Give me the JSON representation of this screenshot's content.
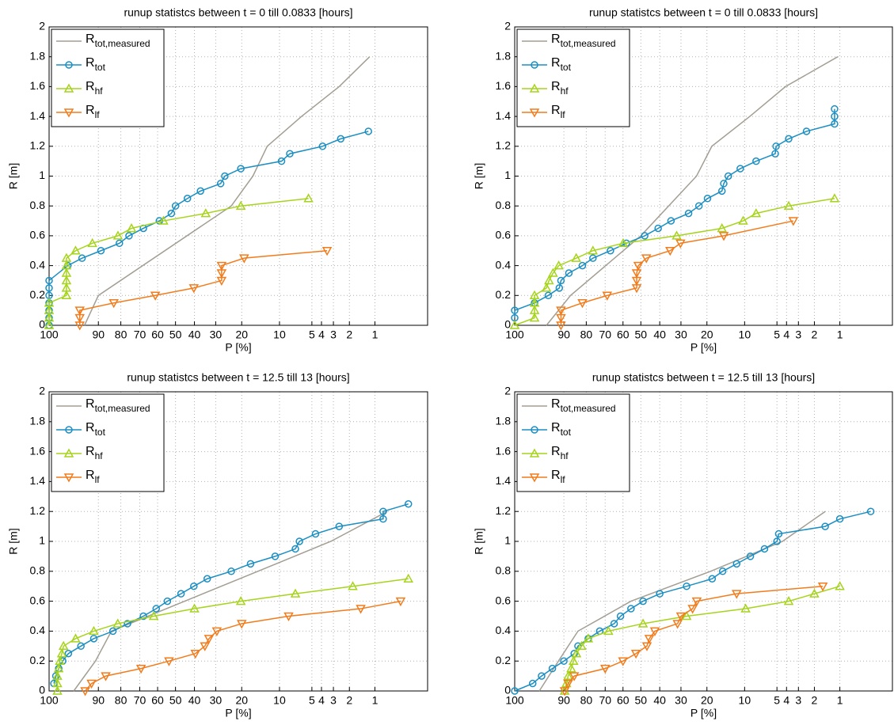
{
  "chart_data": [
    {
      "type": "line",
      "title": "runup statistcs between t = 0 till 0.0833 [hours]",
      "xlabel": "P [%]",
      "ylabel": "R [m]",
      "xscale": "rayleigh",
      "xlim": [
        100,
        0.2
      ],
      "ylim": [
        0,
        2
      ],
      "xticks": [
        100,
        90,
        80,
        70,
        60,
        50,
        40,
        30,
        20,
        10,
        5,
        4,
        3,
        2,
        1
      ],
      "yticks": [
        0,
        0.2,
        0.4,
        0.6,
        0.8,
        1,
        1.2,
        1.4,
        1.6,
        1.8,
        2
      ],
      "grid": true,
      "legend": "upper left",
      "series": [
        {
          "name": "R",
          "subscript": "tot,measured",
          "color": "#a39e93",
          "x": [
            94.7,
            90,
            23.7,
            16.5,
            12.7,
            6.3,
            2.6,
            1.16
          ],
          "values": [
            0,
            0.2,
            0.8,
            1.0,
            1.2,
            1.4,
            1.6,
            1.8
          ]
        },
        {
          "name": "R",
          "subscript": "tot",
          "color": "#1b8ec2",
          "marker": "circle",
          "x": [
            100,
            100,
            100,
            100,
            100,
            100,
            100,
            98.5,
            95.4,
            89,
            80.7,
            75.8,
            68,
            59,
            52.3,
            50,
            43.6,
            37,
            27.9,
            26.2,
            20.3,
            9.6,
            8.1,
            3.9,
            2.5,
            1.2
          ],
          "values": [
            0,
            0.05,
            0.1,
            0.15,
            0.2,
            0.25,
            0.3,
            0.4,
            0.45,
            0.5,
            0.55,
            0.6,
            0.65,
            0.7,
            0.75,
            0.8,
            0.85,
            0.9,
            0.95,
            1.0,
            1.05,
            1.1,
            1.15,
            1.2,
            1.25,
            1.3
          ]
        },
        {
          "name": "R",
          "subscript": "hf",
          "color": "#a6d41c",
          "marker": "triangle-up",
          "x": [
            100,
            100,
            100,
            100,
            98.7,
            98.7,
            98.7,
            98.7,
            98.7,
            98.7,
            97,
            92.2,
            81.4,
            74.5,
            56.7,
            34.5,
            20.3,
            5.4
          ],
          "values": [
            0,
            0.05,
            0.1,
            0.15,
            0.2,
            0.25,
            0.3,
            0.35,
            0.4,
            0.45,
            0.5,
            0.55,
            0.6,
            0.65,
            0.7,
            0.75,
            0.8,
            0.85
          ]
        },
        {
          "name": "R",
          "subscript": "lf",
          "color": "#f27c1c",
          "marker": "triangle-down",
          "x": [
            96,
            96,
            96,
            83.4,
            61.3,
            40.3,
            27.5,
            27.5,
            27.5,
            19.2,
            3.5
          ],
          "values": [
            0,
            0.05,
            0.1,
            0.15,
            0.2,
            0.25,
            0.3,
            0.35,
            0.4,
            0.45,
            0.5
          ]
        }
      ]
    },
    {
      "type": "line",
      "title": "runup statistcs between t = 0 till 0.0833 [hours]",
      "xlabel": "P [%]",
      "ylabel": "R [m]",
      "xscale": "rayleigh",
      "xlim": [
        100,
        0.2
      ],
      "ylim": [
        0,
        2
      ],
      "xticks": [
        100,
        90,
        80,
        70,
        60,
        50,
        40,
        30,
        20,
        10,
        5,
        4,
        3,
        2,
        1
      ],
      "yticks": [
        0,
        0.2,
        0.4,
        0.6,
        0.8,
        1,
        1.2,
        1.4,
        1.6,
        1.8,
        2
      ],
      "grid": true,
      "legend": "upper left",
      "series": [
        {
          "name": "R",
          "subscript": "tot,measured",
          "color": "#a39e93",
          "x": [
            95.7,
            87.3,
            50,
            23.7,
            18.4,
            9,
            4.1,
            1.06
          ],
          "values": [
            0,
            0.2,
            0.6,
            1.0,
            1.2,
            1.4,
            1.6,
            1.8
          ]
        },
        {
          "name": "R",
          "subscript": "tot",
          "color": "#1b8ec2",
          "marker": "circle",
          "x": [
            100,
            100,
            98.3,
            95.2,
            91.7,
            91.1,
            88,
            81.9,
            76.6,
            67.1,
            58.1,
            47.9,
            40.8,
            34.5,
            26.8,
            22.8,
            19.8,
            15.4,
            14.9,
            13.7,
            10.9,
            7.9,
            5.2,
            5.1,
            3.8,
            2.45,
            1.16,
            1.16,
            1.16
          ],
          "values": [
            0.05,
            0.1,
            0.15,
            0.2,
            0.25,
            0.3,
            0.35,
            0.4,
            0.45,
            0.5,
            0.55,
            0.6,
            0.65,
            0.7,
            0.75,
            0.8,
            0.85,
            0.9,
            0.95,
            1.0,
            1.05,
            1.1,
            1.15,
            1.2,
            1.25,
            1.3,
            1.35,
            1.4,
            1.45
          ]
        },
        {
          "name": "R",
          "subscript": "hf",
          "color": "#a6d41c",
          "marker": "triangle-up",
          "x": [
            100,
            98.3,
            98.3,
            98.3,
            98.3,
            95.7,
            95.0,
            93.8,
            91.9,
            84.8,
            76.6,
            59.9,
            31.9,
            15.4,
            10.3,
            7.9,
            3.8,
            1.16
          ],
          "values": [
            0,
            0.05,
            0.1,
            0.15,
            0.2,
            0.25,
            0.3,
            0.35,
            0.4,
            0.45,
            0.5,
            0.55,
            0.6,
            0.65,
            0.7,
            0.75,
            0.8,
            0.85
          ]
        },
        {
          "name": "R",
          "subscript": "lf",
          "color": "#f27c1c",
          "marker": "triangle-down",
          "x": [
            91.1,
            91.1,
            91.1,
            81.9,
            68.9,
            52.3,
            52.3,
            52.3,
            51.4,
            47.0,
            34.9,
            30.2,
            14.9,
            3.4
          ],
          "values": [
            0,
            0.05,
            0.1,
            0.15,
            0.2,
            0.25,
            0.3,
            0.35,
            0.4,
            0.45,
            0.5,
            0.55,
            0.6,
            0.7
          ]
        }
      ]
    },
    {
      "type": "line",
      "title": "runup statistcs between t = 12.5 till 13 [hours]",
      "xlabel": "P [%]",
      "ylabel": "R [m]",
      "xscale": "rayleigh",
      "xlim": [
        100,
        0.2
      ],
      "ylim": [
        0,
        2
      ],
      "xticks": [
        100,
        90,
        80,
        70,
        60,
        50,
        40,
        30,
        20,
        10,
        5,
        4,
        3,
        2,
        1
      ],
      "yticks": [
        0,
        0.2,
        0.4,
        0.6,
        0.8,
        1,
        1.2,
        1.4,
        1.6,
        1.8,
        2
      ],
      "grid": true,
      "legend": "upper left",
      "series": [
        {
          "name": "R",
          "subscript": "tot,measured",
          "color": "#a39e93",
          "x": [
            97.4,
            91.1,
            84.5,
            15.1,
            3.2,
            0.7
          ],
          "values": [
            0,
            0.2,
            0.4,
            0.8,
            1.0,
            1.2
          ]
        },
        {
          "name": "R",
          "subscript": "tot",
          "color": "#1b8ec2",
          "marker": "circle",
          "x": [
            99.9,
            99.8,
            99.6,
            99.2,
            98.4,
            95.7,
            91.7,
            83.8,
            76.6,
            68,
            60.8,
            54.5,
            47.0,
            40.3,
            33.8,
            23.7,
            17.2,
            10.9,
            7.2,
            6.6,
            4.6,
            2.6,
            0.79,
            0.79,
            0.37
          ],
          "values": [
            0.05,
            0.1,
            0.15,
            0.2,
            0.25,
            0.3,
            0.35,
            0.4,
            0.45,
            0.5,
            0.55,
            0.6,
            0.65,
            0.7,
            0.75,
            0.8,
            0.85,
            0.9,
            0.95,
            1.0,
            1.05,
            1.1,
            1.15,
            1.2,
            1.25
          ]
        },
        {
          "name": "R",
          "subscript": "hf",
          "color": "#a6d41c",
          "marker": "triangle-up",
          "x": [
            99.7,
            99.7,
            99.7,
            99.6,
            99.5,
            99.3,
            99.1,
            97.0,
            91.7,
            81.5,
            62.2,
            40.0,
            20.3,
            7.2,
            1.83,
            0.37
          ],
          "values": [
            0,
            0.05,
            0.1,
            0.15,
            0.2,
            0.25,
            0.3,
            0.35,
            0.4,
            0.45,
            0.5,
            0.55,
            0.6,
            0.65,
            0.7,
            0.75
          ]
        },
        {
          "name": "R",
          "subscript": "lf",
          "color": "#f27c1c",
          "marker": "triangle-down",
          "x": [
            94.5,
            92.5,
            87.0,
            69.3,
            53.6,
            39.5,
            34.9,
            33.0,
            29.5,
            20.0,
            8.3,
            1.48,
            0.47
          ],
          "values": [
            0,
            0.05,
            0.1,
            0.15,
            0.2,
            0.25,
            0.3,
            0.35,
            0.4,
            0.45,
            0.5,
            0.55,
            0.6
          ]
        }
      ]
    },
    {
      "type": "line",
      "title": "runup statistcs between t = 12.5 till 13 [hours]",
      "xlabel": "P [%]",
      "ylabel": "R [m]",
      "xscale": "rayleigh",
      "xlim": [
        100,
        0.2
      ],
      "ylim": [
        0,
        2
      ],
      "xticks": [
        100,
        90,
        80,
        70,
        60,
        50,
        40,
        30,
        20,
        10,
        5,
        4,
        3,
        2,
        1
      ],
      "yticks": [
        0,
        0.2,
        0.4,
        0.6,
        0.8,
        1,
        1.2,
        1.4,
        1.6,
        1.8,
        2
      ],
      "grid": true,
      "legend": "upper left",
      "series": [
        {
          "name": "R",
          "subscript": "tot,measured",
          "color": "#a39e93",
          "x": [
            97.4,
            92,
            84,
            55.5,
            18.8,
            4.4,
            1.5
          ],
          "values": [
            0,
            0.2,
            0.4,
            0.6,
            0.8,
            1.0,
            1.2
          ]
        },
        {
          "name": "R",
          "subscript": "tot",
          "color": "#1b8ec2",
          "marker": "circle",
          "x": [
            100,
            98.6,
            96.9,
            94,
            90,
            85.7,
            84,
            79,
            73,
            65,
            61.4,
            55.5,
            48.8,
            40,
            27.6,
            18.3,
            15.2,
            11.7,
            8.9,
            6.6,
            5,
            4.8,
            1.5,
            1,
            0.4
          ],
          "values": [
            0,
            0.05,
            0.1,
            0.15,
            0.2,
            0.25,
            0.3,
            0.35,
            0.4,
            0.45,
            0.5,
            0.55,
            0.6,
            0.65,
            0.7,
            0.75,
            0.8,
            0.85,
            0.9,
            0.95,
            1.0,
            1.05,
            1.1,
            1.15,
            1.2
          ]
        },
        {
          "name": "R",
          "subscript": "hf",
          "color": "#a6d41c",
          "marker": "triangle-up",
          "x": [
            89.7,
            89,
            88.3,
            87,
            86,
            84.7,
            82.3,
            79,
            68.2,
            48.8,
            27.6,
            9.8,
            3.8,
            2,
            1
          ],
          "values": [
            0,
            0.05,
            0.1,
            0.15,
            0.2,
            0.25,
            0.3,
            0.35,
            0.4,
            0.45,
            0.5,
            0.55,
            0.6,
            0.65,
            0.7
          ]
        },
        {
          "name": "R",
          "subscript": "lf",
          "color": "#f27c1c",
          "marker": "triangle-down",
          "x": [
            89.7,
            88.3,
            85.7,
            70,
            60,
            52.7,
            46.7,
            45.4,
            42.5,
            31.5,
            30,
            25.2,
            23.6,
            11.7,
            1.6
          ],
          "values": [
            0,
            0.05,
            0.1,
            0.15,
            0.2,
            0.25,
            0.3,
            0.35,
            0.4,
            0.45,
            0.5,
            0.55,
            0.6,
            0.65,
            0.7
          ]
        }
      ]
    }
  ]
}
